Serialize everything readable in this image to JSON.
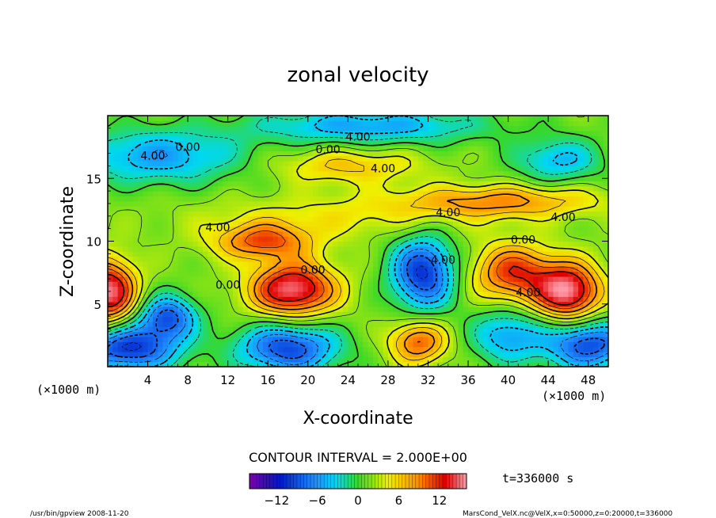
{
  "chart_data": {
    "type": "heatmap",
    "title": "zonal velocity",
    "xlabel": "X-coordinate",
    "ylabel": "Z-coordinate",
    "x_unit_label": "(×1000 m)",
    "y_unit_label": "(×1000 m)",
    "xlim": [
      0,
      50
    ],
    "ylim": [
      0,
      20
    ],
    "x_ticks": [
      4,
      8,
      12,
      16,
      20,
      24,
      28,
      32,
      36,
      40,
      44,
      48
    ],
    "y_ticks": [
      5,
      10,
      15
    ],
    "contour_interval_label": "CONTOUR INTERVAL = 2.000E+00",
    "contour_labels": [
      {
        "text": "4.00",
        "x": 4.5,
        "y": 16.5
      },
      {
        "text": "0.00",
        "x": 8,
        "y": 17.2
      },
      {
        "text": "0.00",
        "x": 22,
        "y": 17.0
      },
      {
        "text": "4.00",
        "x": 25,
        "y": 18.0
      },
      {
        "text": "4.00",
        "x": 27.5,
        "y": 15.5
      },
      {
        "text": "4.00",
        "x": 11,
        "y": 10.8
      },
      {
        "text": "4.00",
        "x": 34,
        "y": 12.0
      },
      {
        "text": "0.00",
        "x": 41.5,
        "y": 9.8
      },
      {
        "text": "4.00",
        "x": 45.5,
        "y": 11.6
      },
      {
        "text": "0.00",
        "x": 20.5,
        "y": 7.4
      },
      {
        "text": "0.00",
        "x": 12,
        "y": 6.2
      },
      {
        "text": "4.00",
        "x": 33.5,
        "y": 8.2
      },
      {
        "text": "4.00",
        "x": 42,
        "y": 5.6
      }
    ],
    "features": [
      {
        "x": 0,
        "z": 6.0,
        "amp": 14,
        "sx": 2.0,
        "sz": 1.8
      },
      {
        "x": 18.5,
        "z": 6.2,
        "amp": 14,
        "sx": 3.0,
        "sz": 1.5
      },
      {
        "x": 15.5,
        "z": 10.0,
        "amp": 9,
        "sx": 3.5,
        "sz": 1.0
      },
      {
        "x": 46,
        "z": 6.0,
        "amp": 14,
        "sx": 2.3,
        "sz": 1.6
      },
      {
        "x": 40.5,
        "z": 7.5,
        "amp": 10,
        "sx": 2.8,
        "sz": 1.6
      },
      {
        "x": 39,
        "z": 13.2,
        "amp": 7,
        "sx": 7.0,
        "sz": 0.9
      },
      {
        "x": 24,
        "z": 16.0,
        "amp": 5,
        "sx": 5.0,
        "sz": 1.0
      },
      {
        "x": 6,
        "z": 4.0,
        "amp": -10,
        "sx": 2.0,
        "sz": 1.2
      },
      {
        "x": 31.5,
        "z": 7.5,
        "amp": -12,
        "sx": 2.2,
        "sz": 2.0
      },
      {
        "x": 2,
        "z": 1.5,
        "amp": -12,
        "sx": 3.5,
        "sz": 1.3
      },
      {
        "x": 18,
        "z": 1.5,
        "amp": -11,
        "sx": 3.5,
        "sz": 1.4
      },
      {
        "x": 48,
        "z": 1.8,
        "amp": -11,
        "sx": 3.0,
        "sz": 1.4
      },
      {
        "x": 40,
        "z": 2.5,
        "amp": -7,
        "sx": 2.5,
        "sz": 1.5
      },
      {
        "x": 5,
        "z": 16.8,
        "amp": -7,
        "sx": 6.0,
        "sz": 1.5
      },
      {
        "x": 26,
        "z": 19.2,
        "amp": -7,
        "sx": 8.0,
        "sz": 1.0
      },
      {
        "x": 45,
        "z": 16.5,
        "amp": -6,
        "sx": 3.0,
        "sz": 1.2
      },
      {
        "x": 31,
        "z": 2.0,
        "amp": 9,
        "sx": 2.0,
        "sz": 1.2
      },
      {
        "x": 23,
        "z": 12.0,
        "amp": 3,
        "sx": 10.0,
        "sz": 1.2
      }
    ],
    "colorbar": {
      "min": -16,
      "max": 16,
      "tick_values": [
        -12,
        -6,
        0,
        6,
        12
      ],
      "tick_labels": [
        "−12",
        "−6",
        "0",
        "6",
        "12"
      ]
    },
    "colors": {
      "purple": "#7b00a8",
      "dark_blue": "#0018c8",
      "blue": "#1e8cff",
      "cyan": "#00d8f0",
      "green": "#38d828",
      "yellow": "#f0f000",
      "orange": "#ff8a00",
      "red": "#e00000",
      "pink": "#ff9aa8"
    }
  },
  "time_label": "t=336000 s",
  "footer_left": "/usr/bin/gpview  2008-11-20",
  "footer_right": "MarsCond_VelX.nc@VelX,x=0:50000,z=0:20000,t=336000"
}
